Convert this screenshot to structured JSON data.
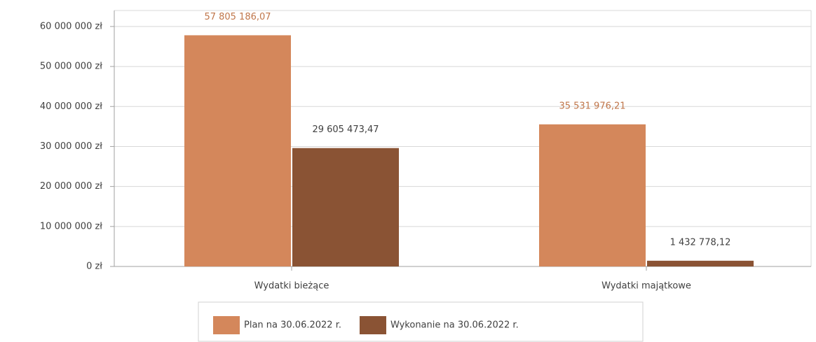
{
  "chart_data": {
    "type": "bar",
    "categories": [
      "Wydatki bieżące",
      "Wydatki majątkowe"
    ],
    "series": [
      {
        "name": "Plan na 30.06.2022 r.",
        "color": "#d4875b",
        "label_color": "#c0764a",
        "values": [
          57805186.07,
          35531976.21
        ],
        "value_labels": [
          "57 805 186,07",
          "35 531 976,21"
        ]
      },
      {
        "name": "Wykonanie na 30.06.2022 r.",
        "color": "#8a5334",
        "label_color": "#404040",
        "values": [
          29605473.47,
          1432778.12
        ],
        "value_labels": [
          "29 605 473,47",
          "1 432 778,12"
        ]
      }
    ],
    "ylim": [
      0,
      64000000
    ],
    "yticks": [
      {
        "value": 0,
        "label": "0 zł"
      },
      {
        "value": 10000000,
        "label": "10 000 000 zł"
      },
      {
        "value": 20000000,
        "label": "20 000 000 zł"
      },
      {
        "value": 30000000,
        "label": "30 000 000 zł"
      },
      {
        "value": 40000000,
        "label": "40 000 000 zł"
      },
      {
        "value": 50000000,
        "label": "50 000 000 zł"
      },
      {
        "value": 60000000,
        "label": "60 000 000 zł"
      }
    ],
    "grid": true,
    "legend": "bottom"
  }
}
